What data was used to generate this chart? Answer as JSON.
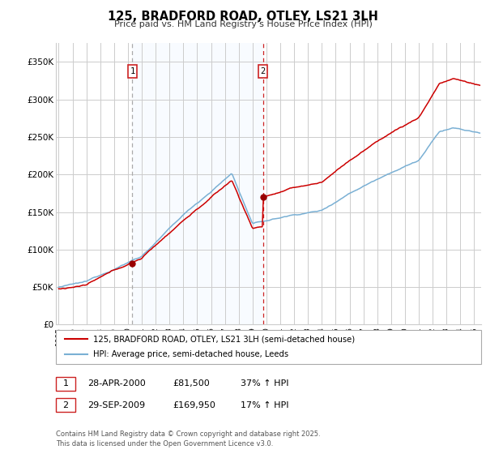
{
  "title": "125, BRADFORD ROAD, OTLEY, LS21 3LH",
  "subtitle": "Price paid vs. HM Land Registry's House Price Index (HPI)",
  "ylabel_ticks": [
    "£0",
    "£50K",
    "£100K",
    "£150K",
    "£200K",
    "£250K",
    "£300K",
    "£350K"
  ],
  "ytick_values": [
    0,
    50000,
    100000,
    150000,
    200000,
    250000,
    300000,
    350000
  ],
  "ylim": [
    0,
    375000
  ],
  "xlim_start": 1994.8,
  "xlim_end": 2025.5,
  "background_color": "#ffffff",
  "plot_bg_color": "#ffffff",
  "grid_color": "#cccccc",
  "sale1_x": 2000.32,
  "sale1_y": 81500,
  "sale2_x": 2009.75,
  "sale2_y": 169950,
  "sale1_date": "28-APR-2000",
  "sale1_price": "£81,500",
  "sale1_hpi": "37% ↑ HPI",
  "sale2_date": "29-SEP-2009",
  "sale2_price": "£169,950",
  "sale2_hpi": "17% ↑ HPI",
  "line1_color": "#cc0000",
  "line2_color": "#7ab0d4",
  "marker_color": "#990000",
  "legend1_label": "125, BRADFORD ROAD, OTLEY, LS21 3LH (semi-detached house)",
  "legend2_label": "HPI: Average price, semi-detached house, Leeds",
  "footnote": "Contains HM Land Registry data © Crown copyright and database right 2025.\nThis data is licensed under the Open Government Licence v3.0.",
  "sale_box_color": "#cc2222",
  "sale1_vline_color": "#aaaaaa",
  "sale2_vline_color": "#cc2222",
  "shade_color": "#ddeeff",
  "xtick_years": [
    1995,
    1996,
    1997,
    1998,
    1999,
    2000,
    2001,
    2002,
    2003,
    2004,
    2005,
    2006,
    2007,
    2008,
    2009,
    2010,
    2011,
    2012,
    2013,
    2014,
    2015,
    2016,
    2017,
    2018,
    2019,
    2020,
    2021,
    2022,
    2023,
    2024,
    2025
  ]
}
